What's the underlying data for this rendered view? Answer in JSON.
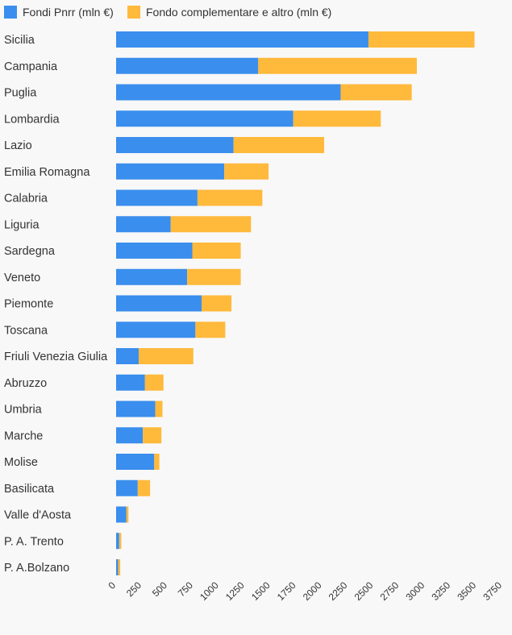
{
  "chart_data": {
    "type": "bar",
    "orientation": "horizontal",
    "stacked": true,
    "categories": [
      "Sicilia",
      "Campania",
      "Puglia",
      "Lombardia",
      "Lazio",
      "Emilia Romagna",
      "Calabria",
      "Liguria",
      "Sardegna",
      "Veneto",
      "Piemonte",
      "Toscana",
      "Friuli Venezia Giulia",
      "Abruzzo",
      "Umbria",
      "Marche",
      "Molise",
      "Basilicata",
      "Valle d'Aosta",
      "P. A. Trento",
      "P. A.Bolzano"
    ],
    "series": [
      {
        "name": "Fondi Pnrr (mln €)",
        "color": "#3a8eed",
        "values": [
          2450,
          1380,
          2180,
          1720,
          1140,
          1050,
          790,
          530,
          740,
          690,
          830,
          770,
          220,
          280,
          380,
          260,
          370,
          210,
          100,
          30,
          20
        ]
      },
      {
        "name": "Fondo complementare e altro (mln €)",
        "color": "#ffb93b",
        "values": [
          1030,
          1540,
          690,
          850,
          880,
          430,
          630,
          780,
          470,
          520,
          290,
          290,
          530,
          180,
          70,
          180,
          50,
          120,
          20,
          20,
          20
        ]
      }
    ],
    "xlim": [
      0,
      3750
    ],
    "xticks": [
      0,
      250,
      500,
      750,
      1000,
      1250,
      1500,
      1750,
      2000,
      2250,
      2500,
      2750,
      3000,
      3250,
      3500,
      3750
    ],
    "xticklabels": [
      "0",
      "250",
      "500",
      "750",
      "1000",
      "1250",
      "1500",
      "1750",
      "2000",
      "2250",
      "2500",
      "2750",
      "3000",
      "3250",
      "3500",
      "3750"
    ],
    "grid": false,
    "legend": "top-left"
  }
}
